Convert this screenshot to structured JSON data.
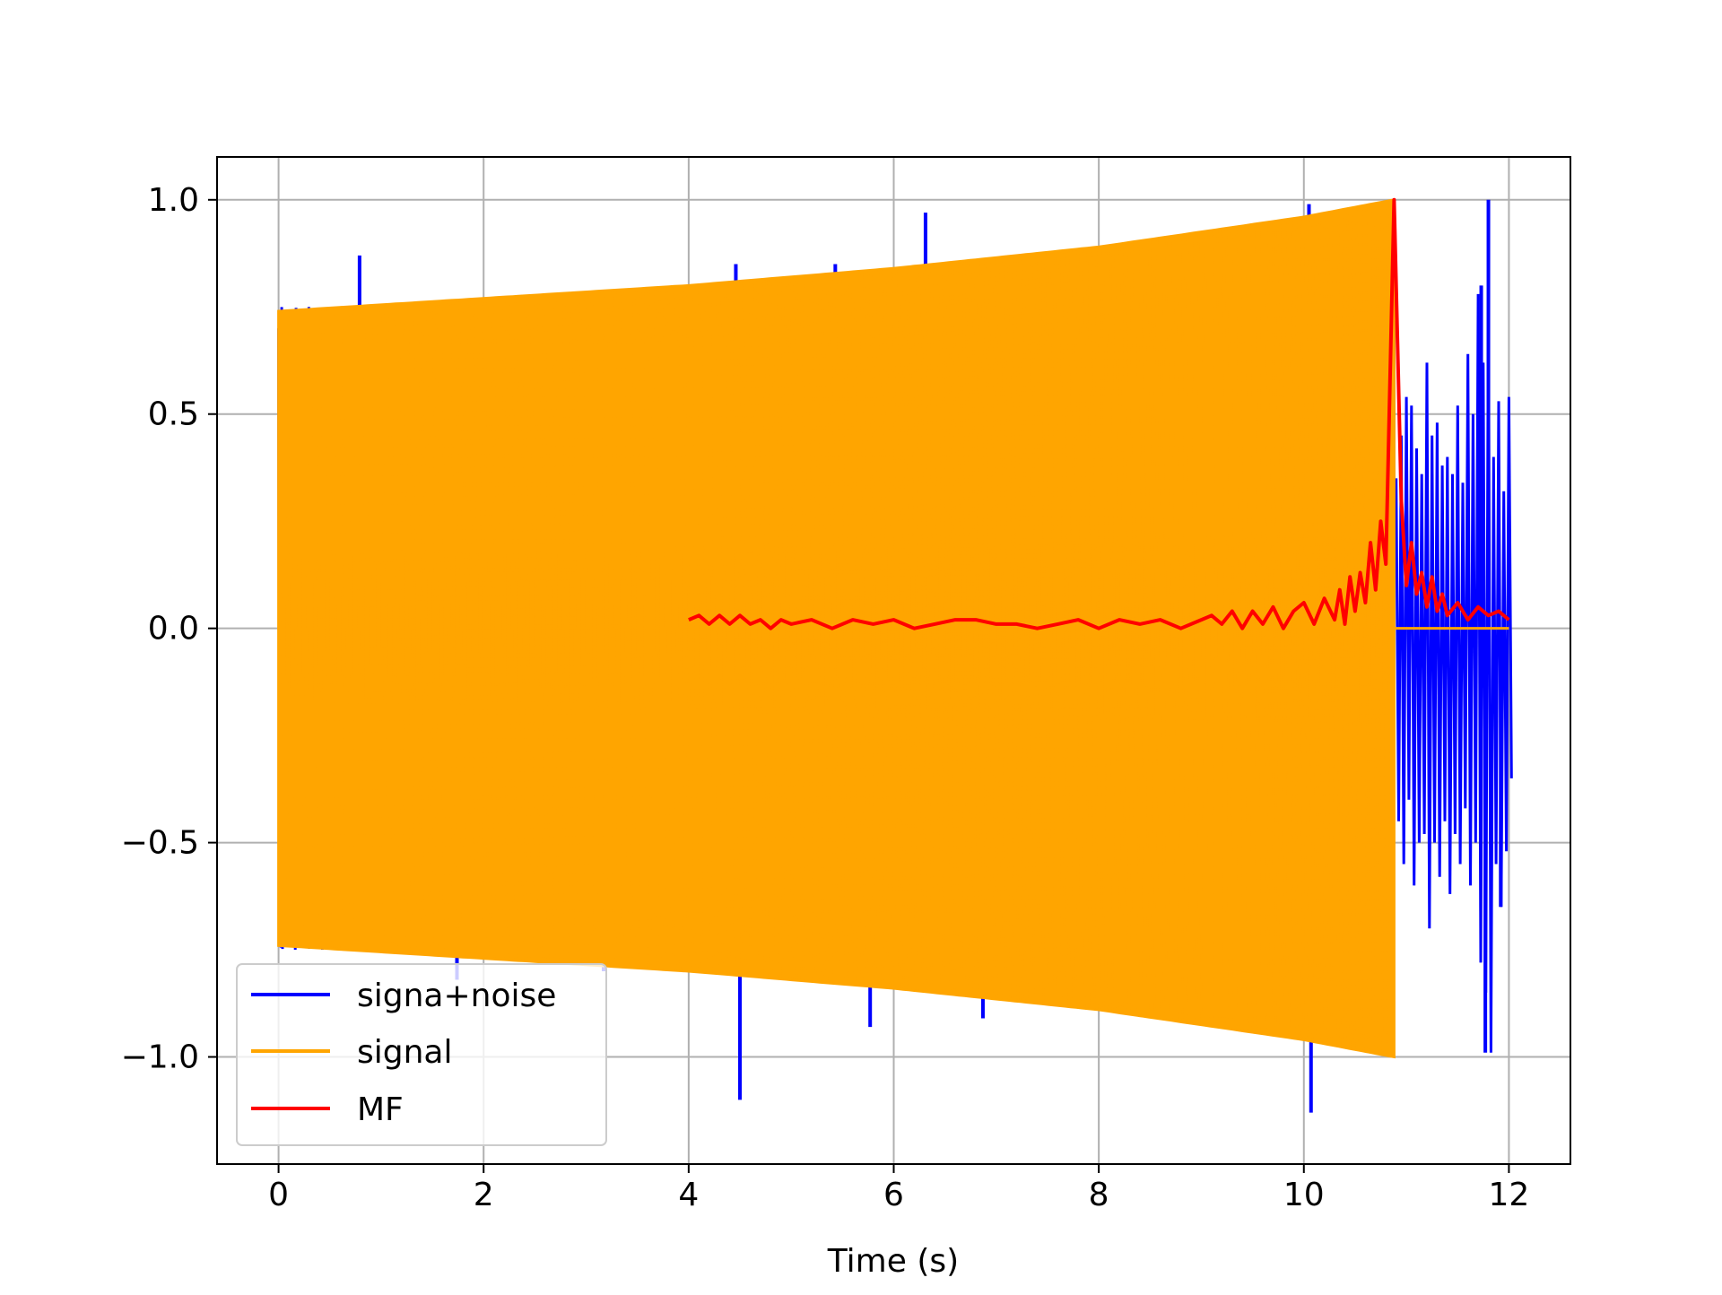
{
  "chart_data": {
    "type": "line",
    "title": "",
    "xlabel": "Time (s)",
    "ylabel": "",
    "xlim": [
      -0.6,
      12.6
    ],
    "ylim": [
      -1.25,
      1.1
    ],
    "xticks": [
      0,
      2,
      4,
      6,
      8,
      10,
      12
    ],
    "xtick_labels": [
      "0",
      "2",
      "4",
      "6",
      "8",
      "10",
      "12"
    ],
    "yticks": [
      1.0,
      0.5,
      0.0,
      -0.5,
      -1.0
    ],
    "ytick_labels": [
      "1.0",
      "0.5",
      "0.0",
      "−0.5",
      "−1.0"
    ],
    "grid": true,
    "legend_position": "lower-left",
    "colors": {
      "noisy": "#0000ff",
      "signal": "#ffa500",
      "mf": "#ff0000",
      "grid": "#b0b0b0"
    },
    "series": [
      {
        "name": "signa+noise",
        "color": "#0000ff",
        "description_of_shape": "signal plus noise; dense oscillation 0-12 s",
        "spikes": [
          [
            0.79,
            0.87
          ],
          [
            1.74,
            -0.82
          ],
          [
            3.17,
            -0.8
          ],
          [
            4.46,
            0.85
          ],
          [
            4.5,
            -1.1
          ],
          [
            5.43,
            0.85
          ],
          [
            5.77,
            -0.93
          ],
          [
            6.31,
            0.97
          ],
          [
            6.87,
            -0.91
          ],
          [
            10.05,
            0.99
          ],
          [
            10.07,
            -1.13
          ],
          [
            11.73,
            0.8
          ],
          [
            11.8,
            1.0
          ],
          [
            11.77,
            -0.99
          ],
          [
            11.92,
            -0.65
          ]
        ],
        "tail_x": [
          10.9,
          10.95,
          11.0,
          11.05,
          11.1,
          11.15,
          11.2,
          11.25,
          11.3,
          11.35,
          11.4,
          11.45,
          11.5,
          11.55,
          11.6,
          11.65,
          11.7,
          11.75,
          11.8,
          11.85,
          11.9,
          11.95,
          12.0
        ],
        "tail_hi": [
          0.35,
          0.45,
          0.54,
          0.52,
          0.42,
          0.36,
          0.62,
          0.45,
          0.48,
          0.38,
          0.4,
          0.36,
          0.52,
          0.34,
          0.64,
          0.5,
          0.78,
          0.62,
          0.8,
          0.4,
          0.53,
          0.32,
          0.54
        ],
        "tail_lo": [
          -0.45,
          -0.55,
          -0.4,
          -0.6,
          -0.5,
          -0.48,
          -0.7,
          -0.5,
          -0.58,
          -0.45,
          -0.62,
          -0.48,
          -0.55,
          -0.42,
          -0.6,
          -0.5,
          -0.78,
          -0.85,
          -0.99,
          -0.55,
          -0.65,
          -0.52,
          -0.35
        ]
      },
      {
        "name": "signal",
        "color": "#ffa500",
        "description_of_shape": "chirp; envelope grows from 0.74 at t=0 to 1.0 at t=10.88, zero afterwards",
        "envelope_x": [
          0,
          2,
          4,
          6,
          8,
          10,
          10.88
        ],
        "envelope_y": [
          0.74,
          0.77,
          0.8,
          0.84,
          0.89,
          0.96,
          1.0
        ],
        "end_time": 10.88
      },
      {
        "name": "MF",
        "color": "#ff0000",
        "description_of_shape": "matched filter output, small ripples, peak 1.0 at 10.88 s",
        "x": [
          4.0,
          4.1,
          4.2,
          4.3,
          4.4,
          4.5,
          4.6,
          4.7,
          4.8,
          4.9,
          5.0,
          5.2,
          5.4,
          5.6,
          5.8,
          6.0,
          6.2,
          6.4,
          6.6,
          6.8,
          7.0,
          7.2,
          7.4,
          7.6,
          7.8,
          8.0,
          8.2,
          8.4,
          8.6,
          8.8,
          9.0,
          9.1,
          9.2,
          9.3,
          9.4,
          9.5,
          9.6,
          9.7,
          9.8,
          9.9,
          10.0,
          10.1,
          10.2,
          10.3,
          10.35,
          10.4,
          10.45,
          10.5,
          10.55,
          10.6,
          10.65,
          10.7,
          10.75,
          10.8,
          10.88,
          10.95,
          11.0,
          11.05,
          11.1,
          11.15,
          11.2,
          11.25,
          11.3,
          11.35,
          11.4,
          11.5,
          11.6,
          11.7,
          11.8,
          11.9,
          12.0
        ],
        "y": [
          0.02,
          0.03,
          0.01,
          0.03,
          0.01,
          0.03,
          0.01,
          0.02,
          0.0,
          0.02,
          0.01,
          0.02,
          0.0,
          0.02,
          0.01,
          0.02,
          0.0,
          0.01,
          0.02,
          0.02,
          0.01,
          0.01,
          0.0,
          0.01,
          0.02,
          0.0,
          0.02,
          0.01,
          0.02,
          0.0,
          0.02,
          0.03,
          0.01,
          0.04,
          0.0,
          0.04,
          0.01,
          0.05,
          0.0,
          0.04,
          0.06,
          0.01,
          0.07,
          0.02,
          0.09,
          0.01,
          0.12,
          0.04,
          0.13,
          0.06,
          0.2,
          0.09,
          0.25,
          0.15,
          1.0,
          0.3,
          0.1,
          0.2,
          0.08,
          0.13,
          0.05,
          0.12,
          0.04,
          0.08,
          0.03,
          0.06,
          0.02,
          0.05,
          0.03,
          0.04,
          0.02
        ]
      }
    ]
  }
}
